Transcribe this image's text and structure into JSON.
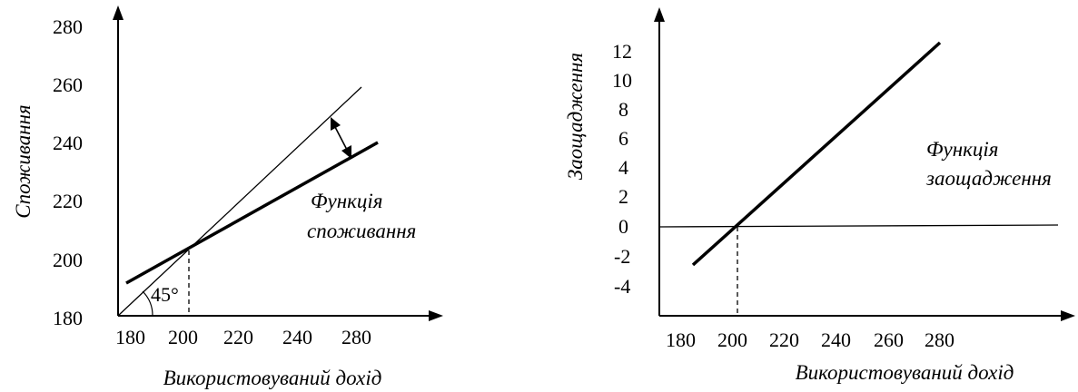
{
  "charts": [
    {
      "type": "line",
      "xlabel": "Використовуваний дохід",
      "ylabel": "Споживання",
      "xticks": [
        180,
        200,
        220,
        240,
        280
      ],
      "yticks": [
        180,
        200,
        220,
        240,
        260,
        280
      ],
      "xlim": [
        180,
        280
      ],
      "ylim": [
        180,
        280
      ],
      "series": [
        {
          "name": "",
          "x": [
            180,
            260
          ],
          "y": [
            180,
            260
          ],
          "style": "thin"
        },
        {
          "name": "Функція споживання",
          "x": [
            182,
            266
          ],
          "y": [
            192,
            240
          ],
          "style": "thick"
        }
      ],
      "annotations": {
        "angle_label": "45°",
        "series_label_line1": "Функція",
        "series_label_line2": "споживання",
        "intersection_x": 200,
        "double_arrow_x": 253
      }
    },
    {
      "type": "line",
      "xlabel": "Використовуваний дохід",
      "ylabel": "Заощадження",
      "xticks": [
        180,
        200,
        220,
        240,
        260,
        280
      ],
      "yticks": [
        -4,
        -2,
        0,
        2,
        4,
        6,
        8,
        10,
        12
      ],
      "xlim": [
        172,
        330
      ],
      "ylim": [
        -6,
        14
      ],
      "series": [
        {
          "name": "Функція заощадження",
          "x": [
            186,
            282
          ],
          "y": [
            -2.5,
            12.5
          ],
          "style": "thick"
        }
      ],
      "annotations": {
        "series_label_line1": "Функція",
        "series_label_line2": "заощадження",
        "zero_line_y": 0,
        "intersection_x": 203
      }
    }
  ],
  "chart_data": [
    {
      "type": "line",
      "xlabel": "Використовуваний дохід",
      "ylabel": "Споживання",
      "series": [
        {
          "name": "",
          "x": [
            180,
            260
          ],
          "y": [
            180,
            260
          ]
        },
        {
          "name": "Функція споживання",
          "x": [
            182,
            266
          ],
          "y": [
            192,
            240
          ]
        }
      ],
      "ylim": [
        180,
        280
      ]
    },
    {
      "type": "line",
      "xlabel": "Використовуваний дохід",
      "ylabel": "Заощадження",
      "series": [
        {
          "name": "Функція заощадження",
          "x": [
            186,
            282
          ],
          "y": [
            -2.5,
            12.5
          ]
        }
      ],
      "ylim": [
        -4,
        12
      ]
    }
  ]
}
